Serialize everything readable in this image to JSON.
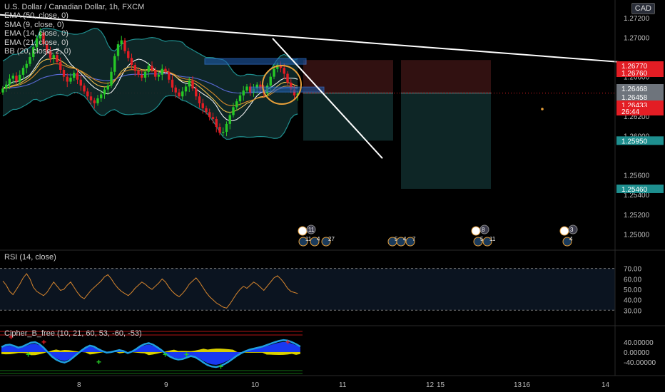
{
  "header": {
    "symbol_title": "U.S. Dollar / Canadian Dollar, 1h, FXCM",
    "currency": "CAD",
    "indicators": [
      "EMA (50, close, 0)",
      "SMA (9, close, 0)",
      "EMA (14, close, 0)",
      "EMA (21, close, 0)",
      "BB (20, close, 2, 0)"
    ]
  },
  "colors": {
    "background": "#000000",
    "up_candle": "#26c826",
    "down_candle": "#e31d24",
    "bb_band": "#1f8f8f",
    "bb_fill": "#0f2a2a",
    "rsi_line": "#d8862d",
    "cipher_wave": "#1f9fe0",
    "cipher_blue": "#1a3cff",
    "cipher_yellow": "#f2e600",
    "trend_line": "#ffffff",
    "stop_zone": "#3a1414",
    "target_zone": "#0f2a2a",
    "label_red": "#e31d24",
    "label_teal": "#1e8f8f"
  },
  "price_axis": {
    "ticks": [
      "1.27200",
      "1.27000",
      "1.26600",
      "1.26400",
      "1.26200",
      "1.26000",
      "1.25600",
      "1.25400",
      "1.25200",
      "1.25000"
    ],
    "labels": [
      {
        "text": "1.26770",
        "kind": "red",
        "value": 1.2677
      },
      {
        "text": "1.26760",
        "kind": "red",
        "value": 1.2676
      },
      {
        "text": "1.26468",
        "kind": "gray",
        "value": 1.26468
      },
      {
        "text": "1.26458",
        "kind": "gray",
        "value": 1.26458
      },
      {
        "text": "1.26433",
        "kind": "red",
        "value": 1.26433
      },
      {
        "text": "26:44",
        "kind": "red",
        "value": 1.2637
      },
      {
        "text": "1.25950",
        "kind": "teal",
        "value": 1.2595
      },
      {
        "text": "1.25460",
        "kind": "teal",
        "value": 1.2546
      }
    ]
  },
  "rsi": {
    "label": "RSI (14, close)",
    "ticks": [
      "70.00",
      "60.00",
      "50.00",
      "40.00",
      "30.00"
    ],
    "upper": 70,
    "lower": 30
  },
  "cipher": {
    "label": "Cipher_B_free (10, 21, 60, 53, -60, -53)",
    "ticks": [
      "40.00000",
      "0.00000",
      "-40.00000"
    ]
  },
  "time_axis": {
    "labels": [
      "8",
      "9",
      "10",
      "11",
      "12",
      "13",
      "14",
      "15",
      "16"
    ]
  },
  "events": {
    "row1_badges": [
      "11",
      "8",
      "3"
    ],
    "row2_badges": [
      "11",
      "4",
      "27",
      "5",
      "4",
      "7",
      "5",
      "11",
      "4"
    ]
  },
  "chart_data": {
    "type": "candlestick",
    "title": "U.S. Dollar / Canadian Dollar, 1h, FXCM",
    "x_unit": "hourly bars",
    "y_range": [
      1.2488,
      1.2738
    ],
    "candles_close_series": [
      1.2648,
      1.2652,
      1.2658,
      1.2661,
      1.2655,
      1.2662,
      1.2669,
      1.2673,
      1.268,
      1.269,
      1.2699,
      1.2705,
      1.2693,
      1.2686,
      1.2679,
      1.2682,
      1.2675,
      1.2667,
      1.266,
      1.2655,
      1.2659,
      1.2664,
      1.2657,
      1.2651,
      1.2645,
      1.264,
      1.2636,
      1.2633,
      1.2638,
      1.2642,
      1.2647,
      1.2651,
      1.2665,
      1.2681,
      1.2693,
      1.2697,
      1.2686,
      1.2679,
      1.2672,
      1.2666,
      1.2662,
      1.2659,
      1.2665,
      1.2671,
      1.2667,
      1.266,
      1.2662,
      1.2668,
      1.2665,
      1.2657,
      1.2649,
      1.2644,
      1.264,
      1.2645,
      1.265,
      1.2656,
      1.2648,
      1.264,
      1.2633,
      1.2628,
      1.2624,
      1.2619,
      1.2617,
      1.2609,
      1.2603,
      1.2604,
      1.2612,
      1.2621,
      1.2629,
      1.2635,
      1.2641,
      1.2646,
      1.265,
      1.2644,
      1.2648,
      1.2652,
      1.2647,
      1.2643,
      1.2651,
      1.266,
      1.2668,
      1.2672,
      1.2669,
      1.2663,
      1.2654,
      1.2647,
      1.2641,
      1.2643
    ],
    "rsi_series": [
      58,
      54,
      48,
      45,
      50,
      55,
      61,
      65,
      60,
      52,
      48,
      46,
      44,
      47,
      52,
      57,
      53,
      49,
      50,
      54,
      57,
      52,
      47,
      43,
      41,
      45,
      49,
      52,
      55,
      58,
      62,
      64,
      60,
      55,
      51,
      48,
      46,
      44,
      47,
      51,
      54,
      57,
      55,
      52,
      50,
      53,
      56,
      60,
      57,
      52,
      48,
      45,
      43,
      46,
      50,
      55,
      58,
      61,
      57,
      52,
      47,
      43,
      40,
      37,
      35,
      33,
      32,
      36,
      41,
      46,
      50,
      53,
      51,
      54,
      57,
      55,
      52,
      49,
      53,
      57,
      61,
      63,
      60,
      56,
      51,
      48,
      47,
      46
    ],
    "cipher_wave_series": [
      20,
      28,
      30,
      25,
      18,
      22,
      30,
      38,
      40,
      32,
      18,
      0,
      -18,
      -30,
      -38,
      -42,
      -35,
      -22,
      -8,
      6,
      18,
      26,
      22,
      12,
      4,
      -2,
      0,
      4,
      8,
      4,
      -4,
      2,
      12,
      24,
      32,
      36,
      30,
      20,
      8,
      -6,
      -18,
      -26,
      -30,
      -28,
      -22,
      -16,
      -20,
      -30,
      -42,
      -52,
      -58,
      -60,
      -56,
      -48,
      -38,
      -26,
      -14,
      -4,
      4,
      10,
      14,
      18,
      22,
      28,
      34,
      40,
      45,
      48,
      46,
      40,
      32,
      22
    ],
    "trend_lines": [
      {
        "from": [
          0,
          1.2723
        ],
        "to": [
          110,
          1.2675
        ]
      },
      {
        "from": [
          69,
          1.2699
        ],
        "to": [
          91,
          1.2577
        ]
      }
    ],
    "short_positions": [
      {
        "entry": 1.26433,
        "stop": 1.2677,
        "target": 1.2595
      },
      {
        "entry": 1.26433,
        "stop": 1.2677,
        "target": 1.2546
      }
    ],
    "grid": false
  }
}
